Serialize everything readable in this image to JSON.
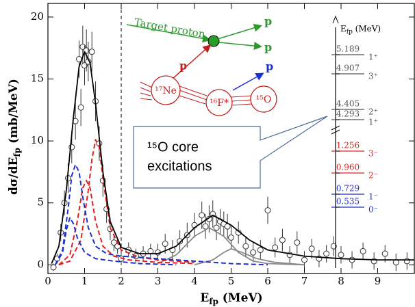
{
  "chart_data": {
    "type": "line",
    "x_label": [
      "E",
      "fp",
      " (MeV)"
    ],
    "y_label": [
      "dσ/dE",
      "fp",
      " (mb/MeV)"
    ],
    "xlim": [
      0,
      10
    ],
    "ylim": [
      -0.7,
      21.1
    ],
    "xticks": [
      0,
      1,
      2,
      3,
      4,
      5,
      6,
      7,
      8,
      9
    ],
    "yticks": [
      0,
      5,
      10,
      15,
      20
    ],
    "reference_line_x": 2,
    "series": [
      {
        "type": "scatter",
        "color": "#333333",
        "x": [
          0.15,
          0.25,
          0.35,
          0.45,
          0.55,
          0.65,
          0.75,
          0.85,
          0.9,
          0.95,
          1.0,
          1.05,
          1.1,
          1.2,
          1.3,
          1.4,
          1.5,
          1.6,
          1.7,
          1.8,
          1.9,
          2.0,
          2.2,
          2.4,
          2.6,
          2.8,
          3.0,
          3.2,
          3.4,
          3.6,
          3.8,
          4.0,
          4.2,
          4.3,
          4.4,
          4.5,
          4.6,
          4.7,
          4.8,
          4.9,
          5.0,
          5.2,
          5.4,
          5.6,
          5.8,
          6.0,
          6.2,
          6.4,
          6.6,
          6.8,
          7.0,
          7.2,
          7.4,
          7.6,
          7.8,
          8.0,
          8.3,
          8.6,
          8.9,
          9.2,
          9.5,
          9.8
        ],
        "values": [
          -0.2,
          0.5,
          2.6,
          5.0,
          7.0,
          9.5,
          11.6,
          16.6,
          12.7,
          17.6,
          16.1,
          17.3,
          16.4,
          17.2,
          13.2,
          9.8,
          6.8,
          4.5,
          2.9,
          1.8,
          1.5,
          0.5,
          1.2,
          0.7,
          0.9,
          1.1,
          1.0,
          1.7,
          1.2,
          1.9,
          2.4,
          3.2,
          4.0,
          3.1,
          3.7,
          4.1,
          3.0,
          3.5,
          3.3,
          3.1,
          2.2,
          2.6,
          1.5,
          1.0,
          1.2,
          4.4,
          1.4,
          2.0,
          0.8,
          1.8,
          0.4,
          1.3,
          0.5,
          0.9,
          1.5,
          0.8,
          0.4,
          1.1,
          0.3,
          0.9,
          0.2,
          0.3
        ],
        "errors": [
          0.3,
          0.4,
          0.7,
          1.0,
          1.2,
          1.3,
          1.5,
          1.5,
          1.5,
          1.7,
          1.6,
          1.7,
          1.6,
          1.6,
          1.6,
          1.4,
          1.3,
          1.1,
          0.9,
          0.7,
          0.6,
          0.5,
          0.6,
          0.6,
          0.6,
          0.6,
          0.7,
          0.8,
          0.8,
          0.9,
          1.0,
          1.0,
          1.1,
          1.0,
          1.1,
          1.1,
          1.0,
          1.0,
          1.0,
          1.0,
          0.9,
          0.9,
          0.8,
          0.8,
          0.8,
          1.1,
          0.8,
          0.9,
          0.7,
          0.9,
          0.7,
          0.8,
          0.7,
          0.7,
          0.8,
          0.7,
          0.7,
          0.7,
          0.7,
          0.7,
          0.7,
          0.7
        ]
      },
      {
        "type": "line",
        "color": "#888888",
        "dash": false,
        "x": [
          3,
          3.5,
          4,
          4.4,
          4.8,
          5.2,
          5.6,
          6,
          7
        ],
        "values": [
          0.1,
          0.8,
          2.3,
          3.0,
          2.3,
          1.0,
          0.3,
          0.1,
          0
        ]
      },
      {
        "type": "line",
        "color": "#888888",
        "dash": false,
        "x": [
          4,
          4.5,
          4.8,
          5.0,
          5.3,
          5.7,
          6.2,
          7
        ],
        "values": [
          0,
          0.4,
          1.0,
          1.3,
          1.0,
          0.5,
          0.2,
          0
        ]
      },
      {
        "type": "line",
        "color": "#e02020",
        "dash": true,
        "x": [
          0.3,
          0.6,
          0.9,
          1.1,
          1.2,
          1.3,
          1.4,
          1.5,
          1.7,
          2.0,
          2.5,
          3.0,
          4.0
        ],
        "values": [
          0,
          0.3,
          2,
          6,
          8.5,
          10.1,
          9.5,
          7,
          3,
          1.2,
          0.6,
          0.4,
          0.2
        ]
      },
      {
        "type": "line",
        "color": "#e02020",
        "dash": true,
        "x": [
          0.3,
          0.6,
          0.8,
          0.95,
          1.05,
          1.15,
          1.3,
          1.5,
          1.8,
          2.2,
          3,
          4
        ],
        "values": [
          0,
          0.8,
          3.5,
          6.2,
          6.8,
          6.2,
          3.5,
          1.5,
          0.7,
          0.4,
          0.2,
          0.1
        ]
      },
      {
        "type": "line",
        "color": "#1c2fd0",
        "dash": true,
        "x": [
          0.2,
          0.4,
          0.55,
          0.65,
          0.75,
          0.85,
          0.95,
          1.1,
          1.3,
          1.6,
          2,
          3,
          4,
          5,
          6
        ],
        "values": [
          0,
          1.2,
          4.5,
          7.2,
          8.1,
          7.5,
          5.5,
          3,
          1.5,
          0.9,
          0.7,
          0.5,
          0.3,
          0.1,
          0
        ]
      },
      {
        "type": "line",
        "color": "#1c2fd0",
        "dash": true,
        "x": [
          0.2,
          0.4,
          0.5,
          0.6,
          0.7,
          0.8,
          1.0,
          1.3,
          1.8,
          2.5,
          3.5
        ],
        "values": [
          0,
          1,
          2.8,
          3.8,
          3.3,
          2.2,
          1.0,
          0.5,
          0.3,
          0.1,
          0
        ]
      },
      {
        "type": "line",
        "color": "#000000",
        "dash": false,
        "x": [
          0.1,
          0.3,
          0.5,
          0.7,
          0.85,
          1.0,
          1.15,
          1.3,
          1.5,
          1.7,
          2.0,
          2.5,
          3.0,
          3.5,
          4.0,
          4.5,
          5.0,
          5.5,
          6.0,
          7.0,
          8.0,
          9.0,
          10.0
        ],
        "values": [
          0.1,
          1.5,
          6,
          12,
          16,
          17.2,
          16.3,
          13,
          7.5,
          3.5,
          1.4,
          0.9,
          0.9,
          1.5,
          3.0,
          4.0,
          3.2,
          2.0,
          1.2,
          0.7,
          0.5,
          0.4,
          0.4
        ]
      }
    ],
    "inset_labels": [
      "Target proton",
      "p",
      "p",
      "p",
      "p",
      "¹⁷Ne",
      "¹⁶F*",
      "¹⁵O"
    ],
    "callout": [
      "¹⁵O core",
      "excitations"
    ],
    "levels_header": [
      "E",
      "fp",
      " (MeV)"
    ],
    "levels": [
      {
        "energy": "5.189",
        "jp": "1⁺",
        "color": "#555555"
      },
      {
        "energy": "4.907",
        "jp": "3⁺",
        "color": "#555555"
      },
      {
        "energy": "4.405",
        "jp": "2⁺",
        "color": "#555555"
      },
      {
        "energy": "4.293",
        "jp": "1⁺",
        "color": "#555555"
      },
      {
        "energy": "1.256",
        "jp": "3⁻",
        "color": "#e02020"
      },
      {
        "energy": "0.960",
        "jp": "2⁻",
        "color": "#e02020"
      },
      {
        "energy": "0.729",
        "jp": "1⁻",
        "color": "#1c2fd0"
      },
      {
        "energy": "0.535",
        "jp": "0⁻",
        "color": "#1c2fd0"
      }
    ]
  }
}
